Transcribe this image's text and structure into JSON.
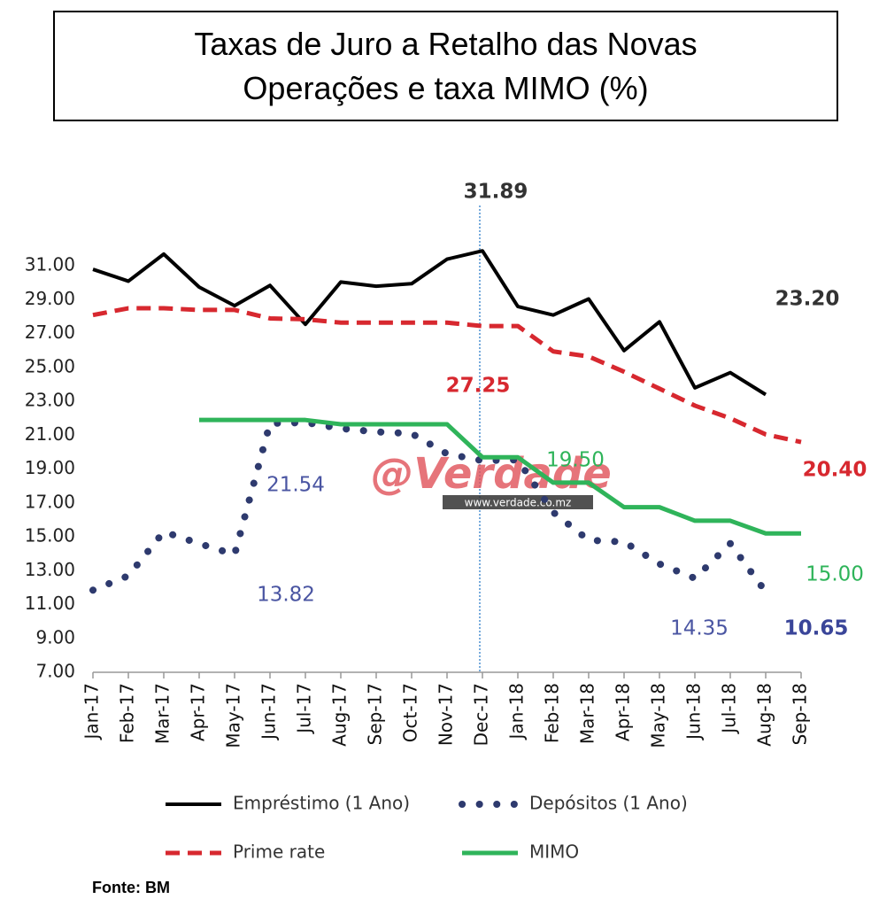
{
  "chart_data": {
    "type": "line",
    "title": "Taxas de Juro a Retalho das Novas Operações e taxa MIMO (%)",
    "categories": [
      "Jan-17",
      "Feb-17",
      "Mar-17",
      "Apr-17",
      "May-17",
      "Jun-17",
      "Jul-17",
      "Aug-17",
      "Sep-17",
      "Oct-17",
      "Nov-17",
      "Dec-17",
      "Jan-18",
      "Feb-18",
      "Mar-18",
      "Apr-18",
      "May-18",
      "Jun-18",
      "Jul-18",
      "Aug-18",
      "Sep-18"
    ],
    "series": [
      {
        "name": "Empréstimo (1 Ano)",
        "color": "#000000",
        "style": "solid",
        "values": [
          30.8,
          30.1,
          31.7,
          29.75,
          28.65,
          29.85,
          27.55,
          30.05,
          29.8,
          29.95,
          31.4,
          31.89,
          28.6,
          28.1,
          29.05,
          26.0,
          27.7,
          23.8,
          24.7,
          23.4,
          null
        ]
      },
      {
        "name": "Depósitos (1 Ano)",
        "color": "#2e3a6e",
        "style": "dots",
        "values": [
          11.85,
          12.7,
          15.3,
          14.6,
          13.95,
          21.7,
          21.75,
          21.4,
          21.2,
          21.1,
          19.9,
          19.5,
          19.55,
          16.45,
          14.8,
          14.7,
          13.4,
          12.55,
          14.6,
          11.75,
          null
        ]
      },
      {
        "name": "Prime rate",
        "color": "#d7282f",
        "style": "dashed",
        "values": [
          28.1,
          28.5,
          28.5,
          28.4,
          28.4,
          27.9,
          27.85,
          27.65,
          27.65,
          27.65,
          27.65,
          27.45,
          27.45,
          25.95,
          25.65,
          24.75,
          23.75,
          22.75,
          22.0,
          21.05,
          20.6
        ]
      },
      {
        "name": "MIMO",
        "color": "#2fb45a",
        "style": "solid",
        "values": [
          null,
          null,
          null,
          21.9,
          21.9,
          21.9,
          21.9,
          21.65,
          21.65,
          21.65,
          21.65,
          19.7,
          19.7,
          18.2,
          18.2,
          16.75,
          16.75,
          15.95,
          15.95,
          15.2,
          15.2
        ]
      }
    ],
    "ylim": [
      7,
      33
    ],
    "yticks": [
      {
        "value": 7,
        "label": "7.00"
      },
      {
        "value": 9,
        "label": "9.00"
      },
      {
        "value": 11,
        "label": "11.00"
      },
      {
        "value": 13,
        "label": "13.00"
      },
      {
        "value": 15,
        "label": "15.00"
      },
      {
        "value": 17,
        "label": "17.00"
      },
      {
        "value": 19,
        "label": "19.00"
      },
      {
        "value": 21,
        "label": "21.00"
      },
      {
        "value": 23,
        "label": "23.00"
      },
      {
        "value": 25,
        "label": "25.00"
      },
      {
        "value": 27,
        "label": "27.00"
      },
      {
        "value": 29,
        "label": "29.00"
      },
      {
        "value": 31,
        "label": "31.00"
      }
    ],
    "annotations": [
      {
        "text": "31.89",
        "color": "#333333",
        "bold": true
      },
      {
        "text": "23.20",
        "color": "#333333",
        "bold": true
      },
      {
        "text": "27.25",
        "color": "#d7282f",
        "bold": true
      },
      {
        "text": "20.40",
        "color": "#d7282f",
        "bold": true
      },
      {
        "text": "19.50",
        "color": "#2fb45a",
        "bold": false
      },
      {
        "text": "15.00",
        "color": "#2fb45a",
        "bold": false
      },
      {
        "text": "21.54",
        "color": "#4a55a2",
        "bold": false
      },
      {
        "text": "13.82",
        "color": "#4a55a2",
        "bold": false
      },
      {
        "text": "14.35",
        "color": "#4a55a2",
        "bold": false
      },
      {
        "text": "10.65",
        "color": "#3a4599",
        "bold": true
      }
    ],
    "watermark": "@Verdade",
    "watermark_url": "www.verdade.co.mz",
    "source": "Fonte: BM"
  }
}
